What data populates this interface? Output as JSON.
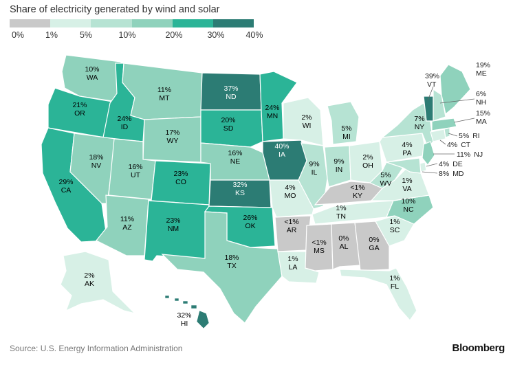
{
  "title": "Share of electricity generated by wind and solar",
  "legend": {
    "labels": [
      "0%",
      "1%",
      "5%",
      "10%",
      "20%",
      "30%",
      "40%"
    ],
    "colors": [
      "#c9c9c9",
      "#d7f0e6",
      "#b6e3d3",
      "#8fd2bc",
      "#2bb497",
      "#2c7c74"
    ]
  },
  "source": "Source: U.S. Energy Information Administration",
  "brand": "Bloomberg",
  "states": [
    {
      "abbr": "WA",
      "value": "10%"
    },
    {
      "abbr": "OR",
      "value": "21%"
    },
    {
      "abbr": "CA",
      "value": "29%"
    },
    {
      "abbr": "ID",
      "value": "24%"
    },
    {
      "abbr": "NV",
      "value": "18%"
    },
    {
      "abbr": "AZ",
      "value": "11%"
    },
    {
      "abbr": "MT",
      "value": "11%"
    },
    {
      "abbr": "WY",
      "value": "17%"
    },
    {
      "abbr": "UT",
      "value": "16%"
    },
    {
      "abbr": "CO",
      "value": "23%"
    },
    {
      "abbr": "NM",
      "value": "23%"
    },
    {
      "abbr": "ND",
      "value": "37%"
    },
    {
      "abbr": "SD",
      "value": "20%"
    },
    {
      "abbr": "NE",
      "value": "16%"
    },
    {
      "abbr": "KS",
      "value": "32%"
    },
    {
      "abbr": "OK",
      "value": "26%"
    },
    {
      "abbr": "TX",
      "value": "18%"
    },
    {
      "abbr": "MN",
      "value": "24%"
    },
    {
      "abbr": "IA",
      "value": "40%"
    },
    {
      "abbr": "MO",
      "value": "4%"
    },
    {
      "abbr": "AR",
      "value": "<1%"
    },
    {
      "abbr": "LA",
      "value": "1%"
    },
    {
      "abbr": "WI",
      "value": "2%"
    },
    {
      "abbr": "IL",
      "value": "9%"
    },
    {
      "abbr": "MI",
      "value": "5%"
    },
    {
      "abbr": "IN",
      "value": "9%"
    },
    {
      "abbr": "OH",
      "value": "2%"
    },
    {
      "abbr": "KY",
      "value": "<1%"
    },
    {
      "abbr": "TN",
      "value": "1%"
    },
    {
      "abbr": "MS",
      "value": "<1%"
    },
    {
      "abbr": "AL",
      "value": "0%"
    },
    {
      "abbr": "GA",
      "value": "0%"
    },
    {
      "abbr": "FL",
      "value": "1%"
    },
    {
      "abbr": "SC",
      "value": "1%"
    },
    {
      "abbr": "NC",
      "value": "10%"
    },
    {
      "abbr": "VA",
      "value": "1%"
    },
    {
      "abbr": "WV",
      "value": "5%"
    },
    {
      "abbr": "PA",
      "value": "4%"
    },
    {
      "abbr": "NY",
      "value": "7%"
    },
    {
      "abbr": "ME",
      "value": "19%"
    },
    {
      "abbr": "VT",
      "value": "39%"
    },
    {
      "abbr": "NH",
      "value": "6%"
    },
    {
      "abbr": "MA",
      "value": "15%"
    },
    {
      "abbr": "RI",
      "value": "5%"
    },
    {
      "abbr": "CT",
      "value": "4%"
    },
    {
      "abbr": "NJ",
      "value": "11%"
    },
    {
      "abbr": "DE",
      "value": "4%"
    },
    {
      "abbr": "MD",
      "value": "8%"
    },
    {
      "abbr": "AK",
      "value": "2%"
    },
    {
      "abbr": "HI",
      "value": "32%"
    }
  ]
}
